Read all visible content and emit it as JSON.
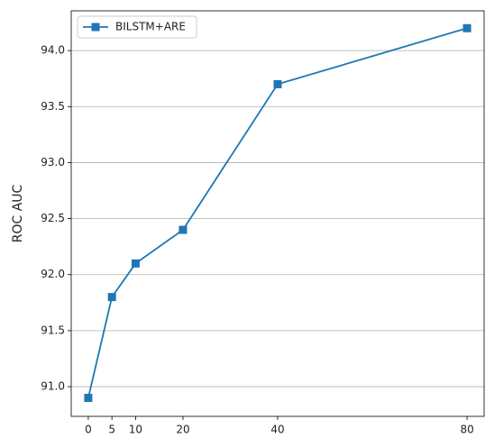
{
  "chart_data": {
    "type": "line",
    "y_label": "ROC AUC",
    "x": [
      0,
      5,
      10,
      20,
      40,
      80
    ],
    "series": [
      {
        "name": "BILSTM+ARE",
        "color": "#1f77b4",
        "values": [
          90.9,
          91.8,
          92.1,
          92.4,
          93.7,
          94.2
        ]
      }
    ],
    "xlim": [
      -3.6,
      83.6
    ],
    "xticks": [
      0,
      5,
      10,
      20,
      40,
      80
    ],
    "ylim": [
      90.735,
      94.355
    ],
    "yticks": [
      {
        "value": 91.0,
        "label": "91.0"
      },
      {
        "value": 91.5,
        "label": "91.5"
      },
      {
        "value": 92.0,
        "label": "92.0"
      },
      {
        "value": 92.5,
        "label": "92.5"
      },
      {
        "value": 93.0,
        "label": "93.0"
      },
      {
        "value": 93.5,
        "label": "93.5"
      },
      {
        "value": 94.0,
        "label": "94.0"
      }
    ],
    "grid": "y",
    "legend": "upper left"
  }
}
